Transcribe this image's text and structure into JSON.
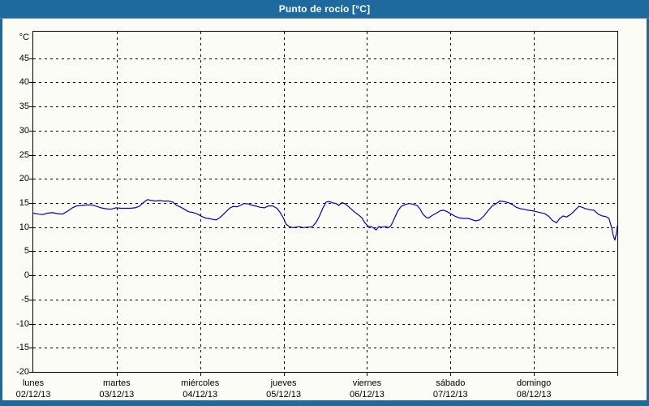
{
  "header": {
    "title": "Punto de rocío [°C]"
  },
  "colors": {
    "frame_blue": "#1e6a9e",
    "titlebar_highlight": "#5b93bb",
    "background": "#fcfcf7",
    "grid": "#000000",
    "axis_border": "#000000",
    "series_line": "#0000c8",
    "title_text": "#ffffff",
    "label_text": "#000000"
  },
  "chart_data": {
    "type": "line",
    "title": "Punto de rocío [°C]",
    "unit_label": "°C",
    "ylabel": "°C",
    "xlabel": "",
    "ylim": [
      -20,
      50.5
    ],
    "yticks": [
      -20,
      -15,
      -10,
      -5,
      0,
      5,
      10,
      15,
      20,
      25,
      30,
      35,
      40,
      45
    ],
    "grid": "dashed",
    "legend_position": "none",
    "x_axis": {
      "unit": "days",
      "days": [
        {
          "name": "lunes",
          "date": "02/12/13"
        },
        {
          "name": "martes",
          "date": "03/12/13"
        },
        {
          "name": "miércoles",
          "date": "04/12/13"
        },
        {
          "name": "jueves",
          "date": "05/12/13"
        },
        {
          "name": "viernes",
          "date": "06/12/13"
        },
        {
          "name": "sábado",
          "date": "07/12/13"
        },
        {
          "name": "domingo",
          "date": "08/12/13"
        }
      ]
    },
    "series": [
      {
        "name": "Punto de rocío",
        "color": "#0000c8",
        "points": [
          [
            0.0,
            12.9
          ],
          [
            0.06,
            12.7
          ],
          [
            0.12,
            12.6
          ],
          [
            0.17,
            12.9
          ],
          [
            0.23,
            13.0
          ],
          [
            0.29,
            12.8
          ],
          [
            0.35,
            12.7
          ],
          [
            0.41,
            13.3
          ],
          [
            0.47,
            14.0
          ],
          [
            0.52,
            14.4
          ],
          [
            0.58,
            14.5
          ],
          [
            0.64,
            14.6
          ],
          [
            0.7,
            14.6
          ],
          [
            0.76,
            14.3
          ],
          [
            0.81,
            14.0
          ],
          [
            0.87,
            13.8
          ],
          [
            0.93,
            13.7
          ],
          [
            0.99,
            14.0
          ],
          [
            1.05,
            13.9
          ],
          [
            1.11,
            13.9
          ],
          [
            1.16,
            13.9
          ],
          [
            1.22,
            14.0
          ],
          [
            1.27,
            14.3
          ],
          [
            1.32,
            15.1
          ],
          [
            1.37,
            15.7
          ],
          [
            1.42,
            15.5
          ],
          [
            1.46,
            15.4
          ],
          [
            1.51,
            15.5
          ],
          [
            1.56,
            15.4
          ],
          [
            1.62,
            15.4
          ],
          [
            1.67,
            15.2
          ],
          [
            1.72,
            14.5
          ],
          [
            1.76,
            14.2
          ],
          [
            1.81,
            13.7
          ],
          [
            1.86,
            13.2
          ],
          [
            1.92,
            13.0
          ],
          [
            1.97,
            12.7
          ],
          [
            2.02,
            12.2
          ],
          [
            2.06,
            11.9
          ],
          [
            2.1,
            11.8
          ],
          [
            2.15,
            11.6
          ],
          [
            2.19,
            11.5
          ],
          [
            2.23,
            11.9
          ],
          [
            2.27,
            12.5
          ],
          [
            2.31,
            13.2
          ],
          [
            2.36,
            14.0
          ],
          [
            2.4,
            14.3
          ],
          [
            2.44,
            14.2
          ],
          [
            2.48,
            14.5
          ],
          [
            2.53,
            14.9
          ],
          [
            2.58,
            14.8
          ],
          [
            2.63,
            14.5
          ],
          [
            2.68,
            14.3
          ],
          [
            2.72,
            14.1
          ],
          [
            2.77,
            14.0
          ],
          [
            2.82,
            14.4
          ],
          [
            2.87,
            14.4
          ],
          [
            2.92,
            13.9
          ],
          [
            2.96,
            13.0
          ],
          [
            3.0,
            11.8
          ],
          [
            3.03,
            10.6
          ],
          [
            3.07,
            10.1
          ],
          [
            3.11,
            9.9
          ],
          [
            3.15,
            10.0
          ],
          [
            3.19,
            10.1
          ],
          [
            3.23,
            9.9
          ],
          [
            3.28,
            10.0
          ],
          [
            3.32,
            10.0
          ],
          [
            3.35,
            10.2
          ],
          [
            3.39,
            11.0
          ],
          [
            3.43,
            12.3
          ],
          [
            3.47,
            13.9
          ],
          [
            3.51,
            15.2
          ],
          [
            3.55,
            15.3
          ],
          [
            3.59,
            15.0
          ],
          [
            3.63,
            14.9
          ],
          [
            3.66,
            14.5
          ],
          [
            3.7,
            15.1
          ],
          [
            3.74,
            14.8
          ],
          [
            3.78,
            14.2
          ],
          [
            3.82,
            13.6
          ],
          [
            3.86,
            13.0
          ],
          [
            3.9,
            12.5
          ],
          [
            3.94,
            11.9
          ],
          [
            3.97,
            11.0
          ],
          [
            4.01,
            10.2
          ],
          [
            4.05,
            10.1
          ],
          [
            4.08,
            9.8
          ],
          [
            4.11,
            9.4
          ],
          [
            4.14,
            10.1
          ],
          [
            4.18,
            10.0
          ],
          [
            4.22,
            10.1
          ],
          [
            4.26,
            9.9
          ],
          [
            4.29,
            10.4
          ],
          [
            4.33,
            11.9
          ],
          [
            4.37,
            13.4
          ],
          [
            4.41,
            14.3
          ],
          [
            4.46,
            14.7
          ],
          [
            4.51,
            14.9
          ],
          [
            4.56,
            14.7
          ],
          [
            4.6,
            14.5
          ],
          [
            4.63,
            13.9
          ],
          [
            4.67,
            12.7
          ],
          [
            4.71,
            12.0
          ],
          [
            4.74,
            11.9
          ],
          [
            4.78,
            12.4
          ],
          [
            4.83,
            12.9
          ],
          [
            4.88,
            13.4
          ],
          [
            4.92,
            13.5
          ],
          [
            4.96,
            13.2
          ],
          [
            5.01,
            12.7
          ],
          [
            5.06,
            12.2
          ],
          [
            5.11,
            11.9
          ],
          [
            5.16,
            11.8
          ],
          [
            5.21,
            11.8
          ],
          [
            5.25,
            11.6
          ],
          [
            5.3,
            11.3
          ],
          [
            5.35,
            11.5
          ],
          [
            5.4,
            12.3
          ],
          [
            5.45,
            13.4
          ],
          [
            5.5,
            14.4
          ],
          [
            5.55,
            14.9
          ],
          [
            5.59,
            15.4
          ],
          [
            5.64,
            15.3
          ],
          [
            5.69,
            15.1
          ],
          [
            5.74,
            14.7
          ],
          [
            5.79,
            14.1
          ],
          [
            5.84,
            13.8
          ],
          [
            5.88,
            13.7
          ],
          [
            5.93,
            13.5
          ],
          [
            5.98,
            13.4
          ],
          [
            6.03,
            13.2
          ],
          [
            6.08,
            13.0
          ],
          [
            6.13,
            12.8
          ],
          [
            6.18,
            12.2
          ],
          [
            6.22,
            11.4
          ],
          [
            6.27,
            10.9
          ],
          [
            6.31,
            11.8
          ],
          [
            6.35,
            12.3
          ],
          [
            6.39,
            12.1
          ],
          [
            6.43,
            12.5
          ],
          [
            6.47,
            13.1
          ],
          [
            6.51,
            13.8
          ],
          [
            6.54,
            14.3
          ],
          [
            6.58,
            14.1
          ],
          [
            6.62,
            13.8
          ],
          [
            6.67,
            13.6
          ],
          [
            6.72,
            13.5
          ],
          [
            6.77,
            12.7
          ],
          [
            6.82,
            12.3
          ],
          [
            6.86,
            12.2
          ],
          [
            6.9,
            11.8
          ],
          [
            6.93,
            10.0
          ],
          [
            6.95,
            8.3
          ],
          [
            6.97,
            7.3
          ],
          [
            6.99,
            8.8
          ],
          [
            7.0,
            10.3
          ]
        ]
      }
    ]
  }
}
